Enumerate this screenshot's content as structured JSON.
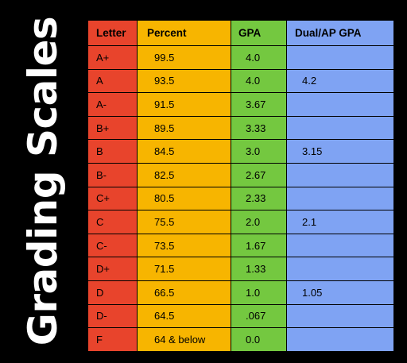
{
  "title": "Grading Scales",
  "headers": [
    "Letter",
    "Percent",
    "GPA",
    "Dual/AP GPA"
  ],
  "rows": [
    {
      "letter": "A+",
      "percent": "99.5",
      "gpa": "4.0",
      "dual": ""
    },
    {
      "letter": "A",
      "percent": "93.5",
      "gpa": "4.0",
      "dual": "4.2"
    },
    {
      "letter": "A-",
      "percent": "91.5",
      "gpa": "3.67",
      "dual": ""
    },
    {
      "letter": "B+",
      "percent": "89.5",
      "gpa": "3.33",
      "dual": ""
    },
    {
      "letter": "B",
      "percent": "84.5",
      "gpa": "3.0",
      "dual": "3.15"
    },
    {
      "letter": "B-",
      "percent": "82.5",
      "gpa": "2.67",
      "dual": ""
    },
    {
      "letter": "C+",
      "percent": "80.5",
      "gpa": "2.33",
      "dual": ""
    },
    {
      "letter": "C",
      "percent": "75.5",
      "gpa": "2.0",
      "dual": "2.1"
    },
    {
      "letter": "C-",
      "percent": "73.5",
      "gpa": "1.67",
      "dual": ""
    },
    {
      "letter": "D+",
      "percent": "71.5",
      "gpa": "1.33",
      "dual": ""
    },
    {
      "letter": "D",
      "percent": "66.5",
      "gpa": "1.0",
      "dual": "1.05"
    },
    {
      "letter": "D-",
      "percent": "64.5",
      "gpa": ".067",
      "dual": ""
    },
    {
      "letter": "F",
      "percent": "64 & below",
      "gpa": "0.0",
      "dual": ""
    }
  ],
  "colors": {
    "background": "#000000",
    "letter_column": "#e8442c",
    "percent_column": "#f7b500",
    "gpa_column": "#74c840",
    "dual_column": "#7fa3f3"
  }
}
